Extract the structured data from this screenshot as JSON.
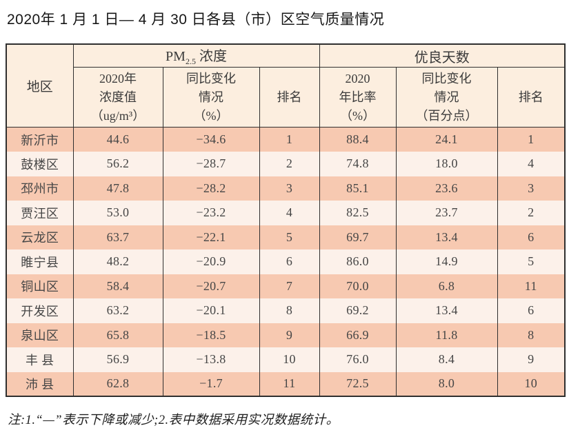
{
  "title": "2020年 1 月 1 日— 4 月 30 日各县（市）区空气质量情况",
  "note": "注:1.“—”表示下降或减少;2.表中数据采用实况数据统计。",
  "colors": {
    "header_bg": "#fceedf",
    "row_odd_bg": "#f7c9b1",
    "row_even_bg": "#fcf1ea",
    "border": "#2e2e2e",
    "text": "#464646"
  },
  "table": {
    "region_header": "地区",
    "pm_group": {
      "base": "PM",
      "sub": "2.5",
      "rest": " 浓度"
    },
    "good_days_group": "优良天数",
    "pm_subheaders": {
      "value": "2020年\n浓度值\n（ug/m³）",
      "change": "同比变化\n情况\n（%）",
      "rank": "排名"
    },
    "good_subheaders": {
      "ratio": "2020\n年比率\n（%）",
      "change": "同比变化\n情况\n（百分点）",
      "rank": "排名"
    },
    "rows": [
      {
        "region": "新沂市",
        "pm_value": "44.6",
        "pm_change": "−34.6",
        "pm_rank": "1",
        "good_ratio": "88.4",
        "good_change": "24.1",
        "good_rank": "1"
      },
      {
        "region": "鼓楼区",
        "pm_value": "56.2",
        "pm_change": "−28.7",
        "pm_rank": "2",
        "good_ratio": "74.8",
        "good_change": "18.0",
        "good_rank": "4"
      },
      {
        "region": "邳州市",
        "pm_value": "47.8",
        "pm_change": "−28.2",
        "pm_rank": "3",
        "good_ratio": "85.1",
        "good_change": "23.6",
        "good_rank": "3"
      },
      {
        "region": "贾汪区",
        "pm_value": "53.0",
        "pm_change": "−23.2",
        "pm_rank": "4",
        "good_ratio": "82.5",
        "good_change": "23.7",
        "good_rank": "2"
      },
      {
        "region": "云龙区",
        "pm_value": "63.7",
        "pm_change": "−22.1",
        "pm_rank": "5",
        "good_ratio": "69.7",
        "good_change": "13.4",
        "good_rank": "6"
      },
      {
        "region": "睢宁县",
        "pm_value": "48.2",
        "pm_change": "−20.9",
        "pm_rank": "6",
        "good_ratio": "86.0",
        "good_change": "14.9",
        "good_rank": "5"
      },
      {
        "region": "铜山区",
        "pm_value": "58.4",
        "pm_change": "−20.7",
        "pm_rank": "7",
        "good_ratio": "70.0",
        "good_change": "6.8",
        "good_rank": "11"
      },
      {
        "region": "开发区",
        "pm_value": "63.2",
        "pm_change": "−20.1",
        "pm_rank": "8",
        "good_ratio": "69.2",
        "good_change": "13.4",
        "good_rank": "6"
      },
      {
        "region": "泉山区",
        "pm_value": "65.8",
        "pm_change": "−18.5",
        "pm_rank": "9",
        "good_ratio": "66.9",
        "good_change": "11.8",
        "good_rank": "8"
      },
      {
        "region": "丰 县",
        "pm_value": "56.9",
        "pm_change": "−13.8",
        "pm_rank": "10",
        "good_ratio": "76.0",
        "good_change": "8.4",
        "good_rank": "9"
      },
      {
        "region": "沛 县",
        "pm_value": "62.8",
        "pm_change": "−1.7",
        "pm_rank": "11",
        "good_ratio": "72.5",
        "good_change": "8.0",
        "good_rank": "10"
      }
    ]
  }
}
